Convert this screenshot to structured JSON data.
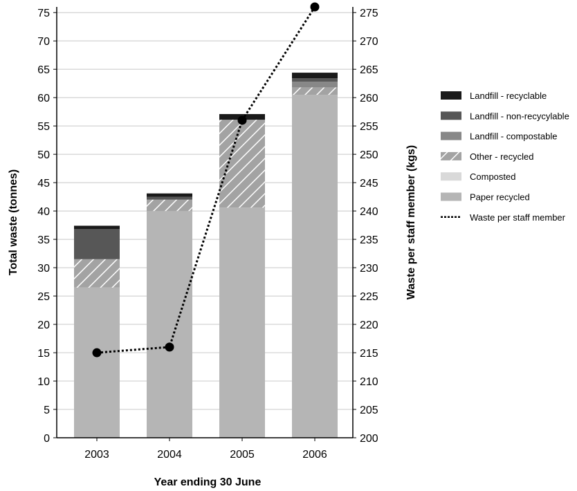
{
  "chart_data": {
    "type": "bar",
    "stacked": true,
    "categories": [
      "2003",
      "2004",
      "2005",
      "2006"
    ],
    "xlabel": "Year ending 30 June",
    "ylabel": "Total waste (tonnes)",
    "y2label": "Waste per staff member (kgs)",
    "ylim": [
      0,
      76
    ],
    "y2lim": [
      200,
      276
    ],
    "yticks": [
      "0",
      "5",
      "10",
      "15",
      "20",
      "25",
      "30",
      "35",
      "40",
      "45",
      "50",
      "55",
      "60",
      "65",
      "70",
      "75"
    ],
    "y2ticks": [
      "200",
      "205",
      "210",
      "215",
      "220",
      "225",
      "230",
      "235",
      "240",
      "245",
      "250",
      "255",
      "260",
      "265",
      "270",
      "275"
    ],
    "grid": true,
    "legend_position": "right",
    "series": [
      {
        "name": "Paper recycled",
        "color": "#b5b5b5",
        "pattern": "solid",
        "values": [
          26.5,
          40.0,
          40.6,
          60.5
        ]
      },
      {
        "name": "Composted",
        "color": "#d9d9d9",
        "pattern": "solid",
        "values": [
          0,
          0,
          0,
          0
        ]
      },
      {
        "name": "Other - recycled",
        "color": "#a3a3a3",
        "pattern": "hatch",
        "values": [
          5.0,
          2.0,
          15.5,
          1.3
        ]
      },
      {
        "name": "Landfill - compostable",
        "color": "#888888",
        "pattern": "solid",
        "values": [
          0,
          0,
          0,
          1.0
        ]
      },
      {
        "name": "Landfill - non-recycylable",
        "color": "#575757",
        "pattern": "solid",
        "values": [
          5.3,
          0.5,
          0,
          0.6
        ]
      },
      {
        "name": "Landfill - recyclable",
        "color": "#1a1a1a",
        "pattern": "solid",
        "values": [
          0.6,
          0.6,
          1.0,
          1.0
        ]
      }
    ],
    "line_series": {
      "name": "Waste per staff member",
      "axis": "y2",
      "style": "dotted",
      "color": "#000000",
      "values": [
        215,
        216,
        256,
        276
      ]
    },
    "legend_order": [
      "Landfill - recyclable",
      "Landfill - non-recycylable",
      "Landfill - compostable",
      "Other - recycled",
      "Composted",
      "Paper recycled",
      "Waste per staff member"
    ]
  }
}
